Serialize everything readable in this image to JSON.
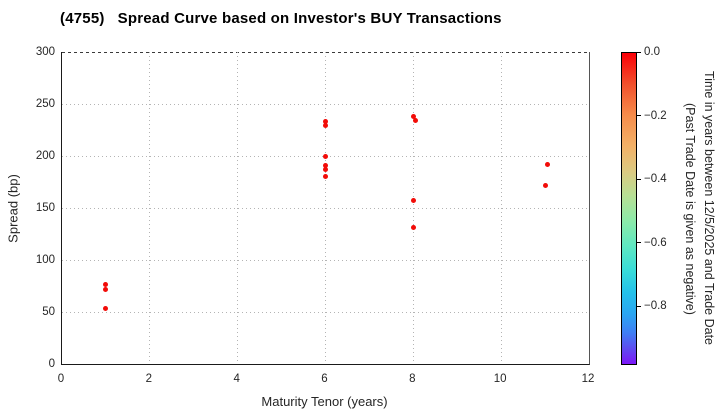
{
  "chart_data": {
    "type": "scatter",
    "title": "(4755)   Spread Curve based on Investor's BUY Transactions",
    "xlabel": "Maturity Tenor (years)",
    "ylabel": "Spread (bp)",
    "xlim": [
      0,
      12
    ],
    "ylim": [
      0,
      300
    ],
    "grid": true,
    "xticks": {
      "values": [
        0,
        2,
        4,
        6,
        8,
        10,
        12
      ],
      "labels": [
        "0",
        "2",
        "4",
        "6",
        "8",
        "10",
        "12"
      ]
    },
    "yticks": {
      "values": [
        0,
        50,
        100,
        150,
        200,
        250,
        300
      ],
      "labels": [
        "0",
        "50",
        "100",
        "150",
        "200",
        "250",
        "300"
      ]
    },
    "point_color": "#f20c08",
    "points": [
      {
        "x": 1,
        "spread": 76,
        "time": 0.0
      },
      {
        "x": 1,
        "spread": 72,
        "time": 0.0
      },
      {
        "x": 1,
        "spread": 53,
        "time": 0.0
      },
      {
        "x": 6,
        "spread": 233,
        "time": 0.0
      },
      {
        "x": 6,
        "spread": 229,
        "time": 0.0
      },
      {
        "x": 6,
        "spread": 200,
        "time": 0.0
      },
      {
        "x": 6,
        "spread": 191,
        "time": 0.0
      },
      {
        "x": 6,
        "spread": 187,
        "time": 0.0
      },
      {
        "x": 6,
        "spread": 180,
        "time": 0.0
      },
      {
        "x": 8,
        "spread": 238,
        "time": 0.0
      },
      {
        "x": 8.05,
        "spread": 234,
        "time": 0.0
      },
      {
        "x": 8,
        "spread": 157,
        "time": 0.0
      },
      {
        "x": 8,
        "spread": 131,
        "time": 0.0
      },
      {
        "x": 11.05,
        "spread": 192,
        "time": 0.0
      },
      {
        "x": 11,
        "spread": 172,
        "time": 0.0
      }
    ],
    "colorbar": {
      "label_line1": "Time in years between 12/5/2025 and Trade Date",
      "label_line2": "(Past Trade Date is given as negative)",
      "range_top": 0.0,
      "range_bottom": -0.985,
      "ticks": [
        {
          "value": 0.0,
          "label": "0.0"
        },
        {
          "value": -0.2,
          "label": "−0.2"
        },
        {
          "value": -0.4,
          "label": "−0.4"
        },
        {
          "value": -0.6,
          "label": "−0.6"
        },
        {
          "value": -0.8,
          "label": "−0.8"
        }
      ],
      "gradient": [
        "#fb0007 0%",
        "#f1502c 10%",
        "#f68c4b 20%",
        "#f3b167 30%",
        "#dcc981 38%",
        "#b7e095 46%",
        "#8ceaa9 54%",
        "#5fe8c1 62%",
        "#38dcd9 70%",
        "#24c1ea 77%",
        "#2aa5f2 84%",
        "#3f7ef4 90%",
        "#5e4cf0 95%",
        "#7c16f8 100%"
      ]
    }
  }
}
